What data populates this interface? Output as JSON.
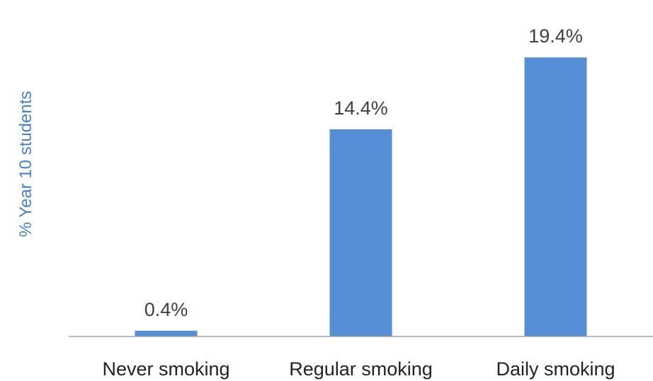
{
  "chart_data": {
    "type": "bar",
    "categories": [
      "Never smoking",
      "Regular smoking",
      "Daily smoking"
    ],
    "values": [
      0.4,
      14.4,
      19.4
    ],
    "data_labels": [
      "0.4%",
      "14.4%",
      "19.4%"
    ],
    "title": "",
    "xlabel": "",
    "ylabel": "% Year 10 students",
    "ylim": [
      0,
      21
    ],
    "grid": false,
    "legend": "none",
    "bar_color": "#558ed5",
    "axis_color": "#a6a6a6",
    "ylabel_color": "#4a80c8"
  }
}
